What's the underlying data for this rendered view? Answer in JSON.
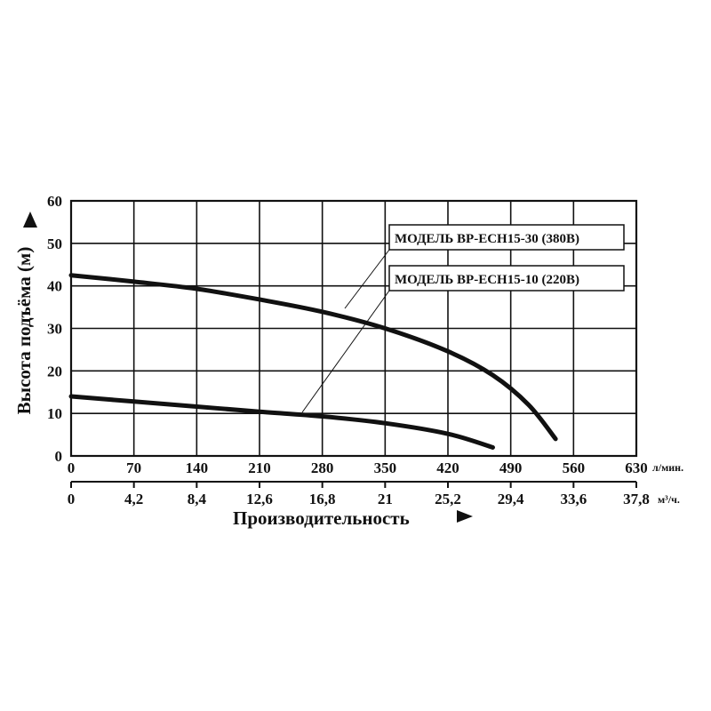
{
  "chart_data": {
    "type": "line",
    "xlabel": "Производительность",
    "ylabel": "Высота подъёма (м)",
    "x_unit": "л/мин.",
    "x2_unit": "м³/ч.",
    "xlim": [
      0,
      630
    ],
    "ylim": [
      0,
      60
    ],
    "x_ticks": [
      "0",
      "70",
      "140",
      "210",
      "280",
      "350",
      "420",
      "490",
      "560",
      "630"
    ],
    "x2_ticks": [
      "0",
      "4,2",
      "8,4",
      "12,6",
      "16,8",
      "21",
      "25,2",
      "29,4",
      "33,6",
      "37,8"
    ],
    "y_ticks": [
      "0",
      "10",
      "20",
      "30",
      "40",
      "50",
      "60"
    ],
    "grid": true,
    "series": [
      {
        "name": "МОДЕЛЬ BP-ECH15-30 (380B)",
        "x": [
          0,
          70,
          140,
          210,
          280,
          350,
          420,
          470,
          510,
          540
        ],
        "y": [
          42.5,
          41,
          39.3,
          36.8,
          33.9,
          30,
          24.6,
          19,
          12,
          4
        ]
      },
      {
        "name": "МОДЕЛЬ BP-ECH15-10 (220B)",
        "x": [
          0,
          70,
          140,
          210,
          280,
          350,
          420,
          470
        ],
        "y": [
          14,
          12.8,
          11.6,
          10.4,
          9.3,
          7.7,
          5.2,
          2
        ]
      }
    ]
  }
}
